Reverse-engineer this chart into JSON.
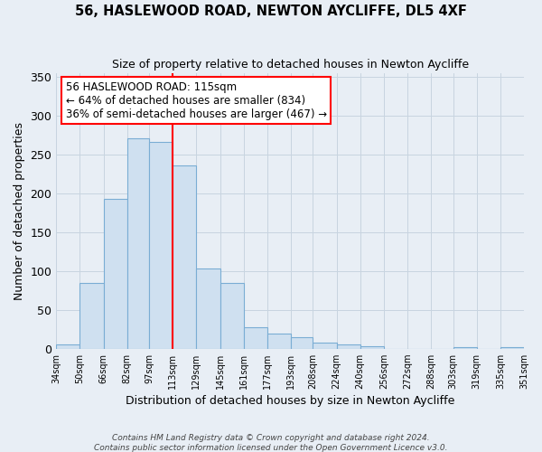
{
  "title": "56, HASLEWOOD ROAD, NEWTON AYCLIFFE, DL5 4XF",
  "subtitle": "Size of property relative to detached houses in Newton Aycliffe",
  "xlabel": "Distribution of detached houses by size in Newton Aycliffe",
  "ylabel": "Number of detached properties",
  "bins": [
    34,
    50,
    66,
    82,
    97,
    113,
    129,
    145,
    161,
    177,
    193,
    208,
    224,
    240,
    256,
    272,
    288,
    303,
    319,
    335,
    351
  ],
  "bin_labels": [
    "34sqm",
    "50sqm",
    "66sqm",
    "82sqm",
    "97sqm",
    "113sqm",
    "129sqm",
    "145sqm",
    "161sqm",
    "177sqm",
    "193sqm",
    "208sqm",
    "224sqm",
    "240sqm",
    "256sqm",
    "272sqm",
    "288sqm",
    "303sqm",
    "319sqm",
    "335sqm",
    "351sqm"
  ],
  "counts": [
    6,
    84,
    193,
    271,
    266,
    236,
    103,
    85,
    27,
    19,
    15,
    8,
    6,
    3,
    0,
    0,
    0,
    2,
    0,
    2
  ],
  "bar_color": "#cfe0f0",
  "bar_edge_color": "#7aadd4",
  "vline_x": 113,
  "vline_color": "red",
  "annotation_title": "56 HASLEWOOD ROAD: 115sqm",
  "annotation_line1": "← 64% of detached houses are smaller (834)",
  "annotation_line2": "36% of semi-detached houses are larger (467) →",
  "ylim": [
    0,
    355
  ],
  "yticks": [
    0,
    50,
    100,
    150,
    200,
    250,
    300,
    350
  ],
  "footer1": "Contains HM Land Registry data © Crown copyright and database right 2024.",
  "footer2": "Contains public sector information licensed under the Open Government Licence v3.0.",
  "background_color": "#e8eef5",
  "grid_color": "#c8d4e0"
}
